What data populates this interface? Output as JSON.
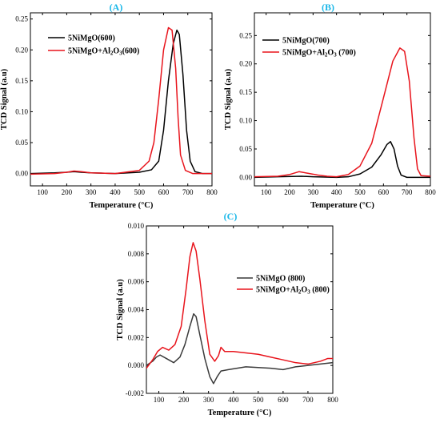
{
  "chart_data": [
    {
      "type": "line",
      "panel_label": "(A)",
      "xlabel": "Temperature (°C)",
      "ylabel": "TCD Signal (a.u)",
      "xlim": [
        50,
        800
      ],
      "ylim": [
        -0.02,
        0.26
      ],
      "xticks": [
        100,
        200,
        300,
        400,
        500,
        600,
        700,
        800
      ],
      "yticks": [
        0.0,
        0.05,
        0.1,
        0.15,
        0.2,
        0.25
      ],
      "ytick_decimals": 2,
      "legend_position": "top-left",
      "series": [
        {
          "name": "5NiMgO(600)",
          "color": "#000000",
          "points": [
            [
              50,
              0.0
            ],
            [
              150,
              0.001
            ],
            [
              200,
              0.002
            ],
            [
              230,
              0.003
            ],
            [
              260,
              0.002
            ],
            [
              300,
              0.001
            ],
            [
              400,
              0.0
            ],
            [
              500,
              0.002
            ],
            [
              550,
              0.006
            ],
            [
              580,
              0.02
            ],
            [
              600,
              0.07
            ],
            [
              620,
              0.15
            ],
            [
              640,
              0.21
            ],
            [
              655,
              0.232
            ],
            [
              665,
              0.225
            ],
            [
              680,
              0.16
            ],
            [
              695,
              0.07
            ],
            [
              710,
              0.02
            ],
            [
              730,
              0.003
            ],
            [
              760,
              0.0
            ],
            [
              800,
              0.0
            ]
          ]
        },
        {
          "name": "5NiMgO+Al₂O₃(600)",
          "color": "#e8141c",
          "points": [
            [
              50,
              -0.001
            ],
            [
              150,
              0.0
            ],
            [
              200,
              0.002
            ],
            [
              230,
              0.004
            ],
            [
              260,
              0.003
            ],
            [
              300,
              0.001
            ],
            [
              400,
              0.0
            ],
            [
              500,
              0.005
            ],
            [
              540,
              0.02
            ],
            [
              560,
              0.05
            ],
            [
              580,
              0.12
            ],
            [
              600,
              0.2
            ],
            [
              620,
              0.236
            ],
            [
              635,
              0.232
            ],
            [
              650,
              0.17
            ],
            [
              660,
              0.09
            ],
            [
              670,
              0.03
            ],
            [
              690,
              0.005
            ],
            [
              720,
              0.0
            ],
            [
              800,
              0.0
            ]
          ]
        }
      ]
    },
    {
      "type": "line",
      "panel_label": "(B)",
      "xlabel": "Temperature (°C)",
      "ylabel": "TCD Signal (a.u)",
      "xlim": [
        50,
        800
      ],
      "ylim": [
        -0.015,
        0.29
      ],
      "xticks": [
        100,
        200,
        300,
        400,
        500,
        600,
        700,
        800
      ],
      "yticks": [
        0.0,
        0.05,
        0.1,
        0.15,
        0.2,
        0.25
      ],
      "ytick_decimals": 2,
      "legend_position": "top-left",
      "series": [
        {
          "name": "5NiMgO(700)",
          "color": "#000000",
          "points": [
            [
              50,
              0.0
            ],
            [
              150,
              0.001
            ],
            [
              250,
              0.002
            ],
            [
              300,
              0.001
            ],
            [
              400,
              0.0
            ],
            [
              450,
              0.001
            ],
            [
              500,
              0.006
            ],
            [
              550,
              0.018
            ],
            [
              590,
              0.04
            ],
            [
              615,
              0.058
            ],
            [
              630,
              0.063
            ],
            [
              645,
              0.05
            ],
            [
              660,
              0.02
            ],
            [
              675,
              0.004
            ],
            [
              700,
              0.0
            ],
            [
              800,
              0.0
            ]
          ]
        },
        {
          "name": "5NiMgO+Al₂O₃ (700)",
          "color": "#e8141c",
          "points": [
            [
              50,
              0.001
            ],
            [
              150,
              0.002
            ],
            [
              200,
              0.005
            ],
            [
              240,
              0.01
            ],
            [
              280,
              0.007
            ],
            [
              320,
              0.004
            ],
            [
              360,
              0.002
            ],
            [
              400,
              0.001
            ],
            [
              450,
              0.005
            ],
            [
              500,
              0.02
            ],
            [
              550,
              0.06
            ],
            [
              600,
              0.14
            ],
            [
              640,
              0.205
            ],
            [
              670,
              0.228
            ],
            [
              690,
              0.222
            ],
            [
              710,
              0.17
            ],
            [
              730,
              0.07
            ],
            [
              745,
              0.015
            ],
            [
              760,
              0.003
            ],
            [
              800,
              0.002
            ]
          ]
        }
      ]
    },
    {
      "type": "line",
      "panel_label": "(C)",
      "xlabel": "Temperature (°C)",
      "ylabel": "TCD Signal (a.u)",
      "xlim": [
        50,
        800
      ],
      "ylim": [
        -0.002,
        0.01
      ],
      "xticks": [
        100,
        200,
        300,
        400,
        500,
        600,
        700,
        800
      ],
      "yticks": [
        -0.002,
        0.0,
        0.002,
        0.004,
        0.006,
        0.008,
        0.01
      ],
      "ytick_decimals": 3,
      "legend_position": "center-right",
      "series": [
        {
          "name": "5NiMgO  (800)",
          "color": "#3a3a3a",
          "points": [
            [
              50,
              0.0
            ],
            [
              75,
              0.0003
            ],
            [
              90,
              0.0006
            ],
            [
              105,
              0.00075
            ],
            [
              130,
              0.0005
            ],
            [
              160,
              0.0002
            ],
            [
              185,
              0.0006
            ],
            [
              205,
              0.0015
            ],
            [
              225,
              0.0028
            ],
            [
              240,
              0.0037
            ],
            [
              250,
              0.0035
            ],
            [
              265,
              0.0022
            ],
            [
              285,
              0.0005
            ],
            [
              305,
              -0.0008
            ],
            [
              320,
              -0.0013
            ],
            [
              335,
              -0.0008
            ],
            [
              350,
              -0.0004
            ],
            [
              380,
              -0.0003
            ],
            [
              450,
              -0.0001
            ],
            [
              550,
              -0.0002
            ],
            [
              600,
              -0.0003
            ],
            [
              650,
              -0.0001
            ],
            [
              700,
              0.0
            ],
            [
              750,
              0.0001
            ],
            [
              800,
              0.0002
            ]
          ]
        },
        {
          "name": "5NiMgO+Al₂O₃ (800)",
          "color": "#e8141c",
          "points": [
            [
              50,
              -0.0002
            ],
            [
              75,
              0.0004
            ],
            [
              95,
              0.001
            ],
            [
              115,
              0.0013
            ],
            [
              140,
              0.0011
            ],
            [
              165,
              0.0015
            ],
            [
              190,
              0.0028
            ],
            [
              210,
              0.0055
            ],
            [
              225,
              0.0078
            ],
            [
              238,
              0.0088
            ],
            [
              250,
              0.0082
            ],
            [
              265,
              0.0062
            ],
            [
              285,
              0.0032
            ],
            [
              305,
              0.0008
            ],
            [
              325,
              0.0003
            ],
            [
              340,
              0.0007
            ],
            [
              350,
              0.0013
            ],
            [
              365,
              0.001
            ],
            [
              400,
              0.001
            ],
            [
              450,
              0.0009
            ],
            [
              500,
              0.0008
            ],
            [
              550,
              0.0006
            ],
            [
              600,
              0.0004
            ],
            [
              650,
              0.0002
            ],
            [
              700,
              0.0001
            ],
            [
              750,
              0.0003
            ],
            [
              780,
              0.0005
            ],
            [
              800,
              0.0005
            ]
          ]
        }
      ]
    }
  ]
}
